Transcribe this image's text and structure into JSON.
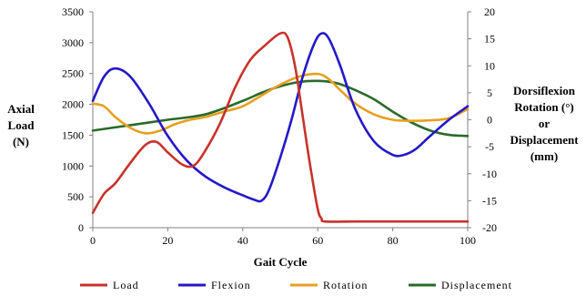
{
  "chart_data": {
    "type": "line",
    "title": "",
    "xlabel": "Gait Cycle",
    "xlim": [
      0,
      100
    ],
    "x_ticks": [
      "0",
      "20",
      "40",
      "60",
      "80",
      "100"
    ],
    "ylabel": [
      "Axial",
      "Load",
      "(N)"
    ],
    "ylim": [
      0,
      3500
    ],
    "y_ticks": [
      "0",
      "500",
      "1000",
      "1500",
      "2000",
      "2500",
      "3000",
      "3500"
    ],
    "y2label": [
      "Dorsiflexion",
      "Rotation  (°)",
      "or",
      "Displacement",
      "(mm)"
    ],
    "y2lim": [
      -20,
      20
    ],
    "y2_ticks": [
      "-20",
      "-15",
      "-10",
      "-5",
      "0",
      "5",
      "10",
      "15",
      "20"
    ],
    "grid": false,
    "legend_position": "bottom",
    "series": [
      {
        "name": "Load",
        "axis": "left",
        "color": "#c8322b",
        "x": [
          0,
          3,
          6,
          10,
          14,
          17,
          20,
          24,
          27,
          30,
          34,
          38,
          42,
          46,
          50,
          52,
          54,
          56,
          58,
          60,
          61,
          62,
          70,
          80,
          90,
          100
        ],
        "values": [
          240,
          550,
          720,
          1050,
          1340,
          1390,
          1220,
          1020,
          1010,
          1250,
          1700,
          2280,
          2720,
          2960,
          3150,
          3080,
          2600,
          1800,
          1000,
          300,
          150,
          100,
          100,
          100,
          100,
          100
        ]
      },
      {
        "name": "Flexion",
        "axis": "right",
        "color": "#2418c8",
        "x": [
          0,
          3,
          6,
          10,
          15,
          20,
          25,
          30,
          35,
          40,
          43,
          45,
          47,
          50,
          53,
          56,
          59,
          61,
          63,
          66,
          70,
          75,
          80,
          83,
          86,
          90,
          95,
          100
        ],
        "values": [
          3.5,
          8,
          9.5,
          8,
          3,
          -3,
          -7.5,
          -10.5,
          -12.5,
          -14,
          -14.8,
          -15,
          -13,
          -7,
          0,
          8,
          14,
          16,
          15,
          10,
          2,
          -4,
          -6.5,
          -6.5,
          -5.5,
          -3,
          0,
          2.5
        ]
      },
      {
        "name": "Rotation",
        "axis": "right",
        "color": "#e6a020",
        "x": [
          0,
          3,
          6,
          10,
          14,
          18,
          22,
          26,
          30,
          35,
          40,
          45,
          50,
          55,
          60,
          63,
          66,
          70,
          75,
          80,
          85,
          90,
          95,
          100
        ],
        "values": [
          3,
          2.5,
          0.5,
          -1.5,
          -2.5,
          -2,
          -0.8,
          0,
          0.5,
          1.5,
          2.5,
          4.5,
          6.5,
          8,
          8.5,
          7.5,
          5.5,
          3,
          1,
          0,
          -0.2,
          -0.1,
          0.3,
          2
        ]
      },
      {
        "name": "Displacement",
        "axis": "right",
        "color": "#2a6a2a",
        "x": [
          0,
          10,
          20,
          30,
          40,
          45,
          50,
          55,
          60,
          65,
          70,
          75,
          80,
          85,
          90,
          95,
          100
        ],
        "values": [
          -2,
          -1,
          0,
          1,
          3.5,
          5,
          6.2,
          7,
          7.2,
          6.8,
          5.5,
          3.8,
          1.5,
          -0.5,
          -2,
          -2.8,
          -3
        ]
      }
    ]
  }
}
